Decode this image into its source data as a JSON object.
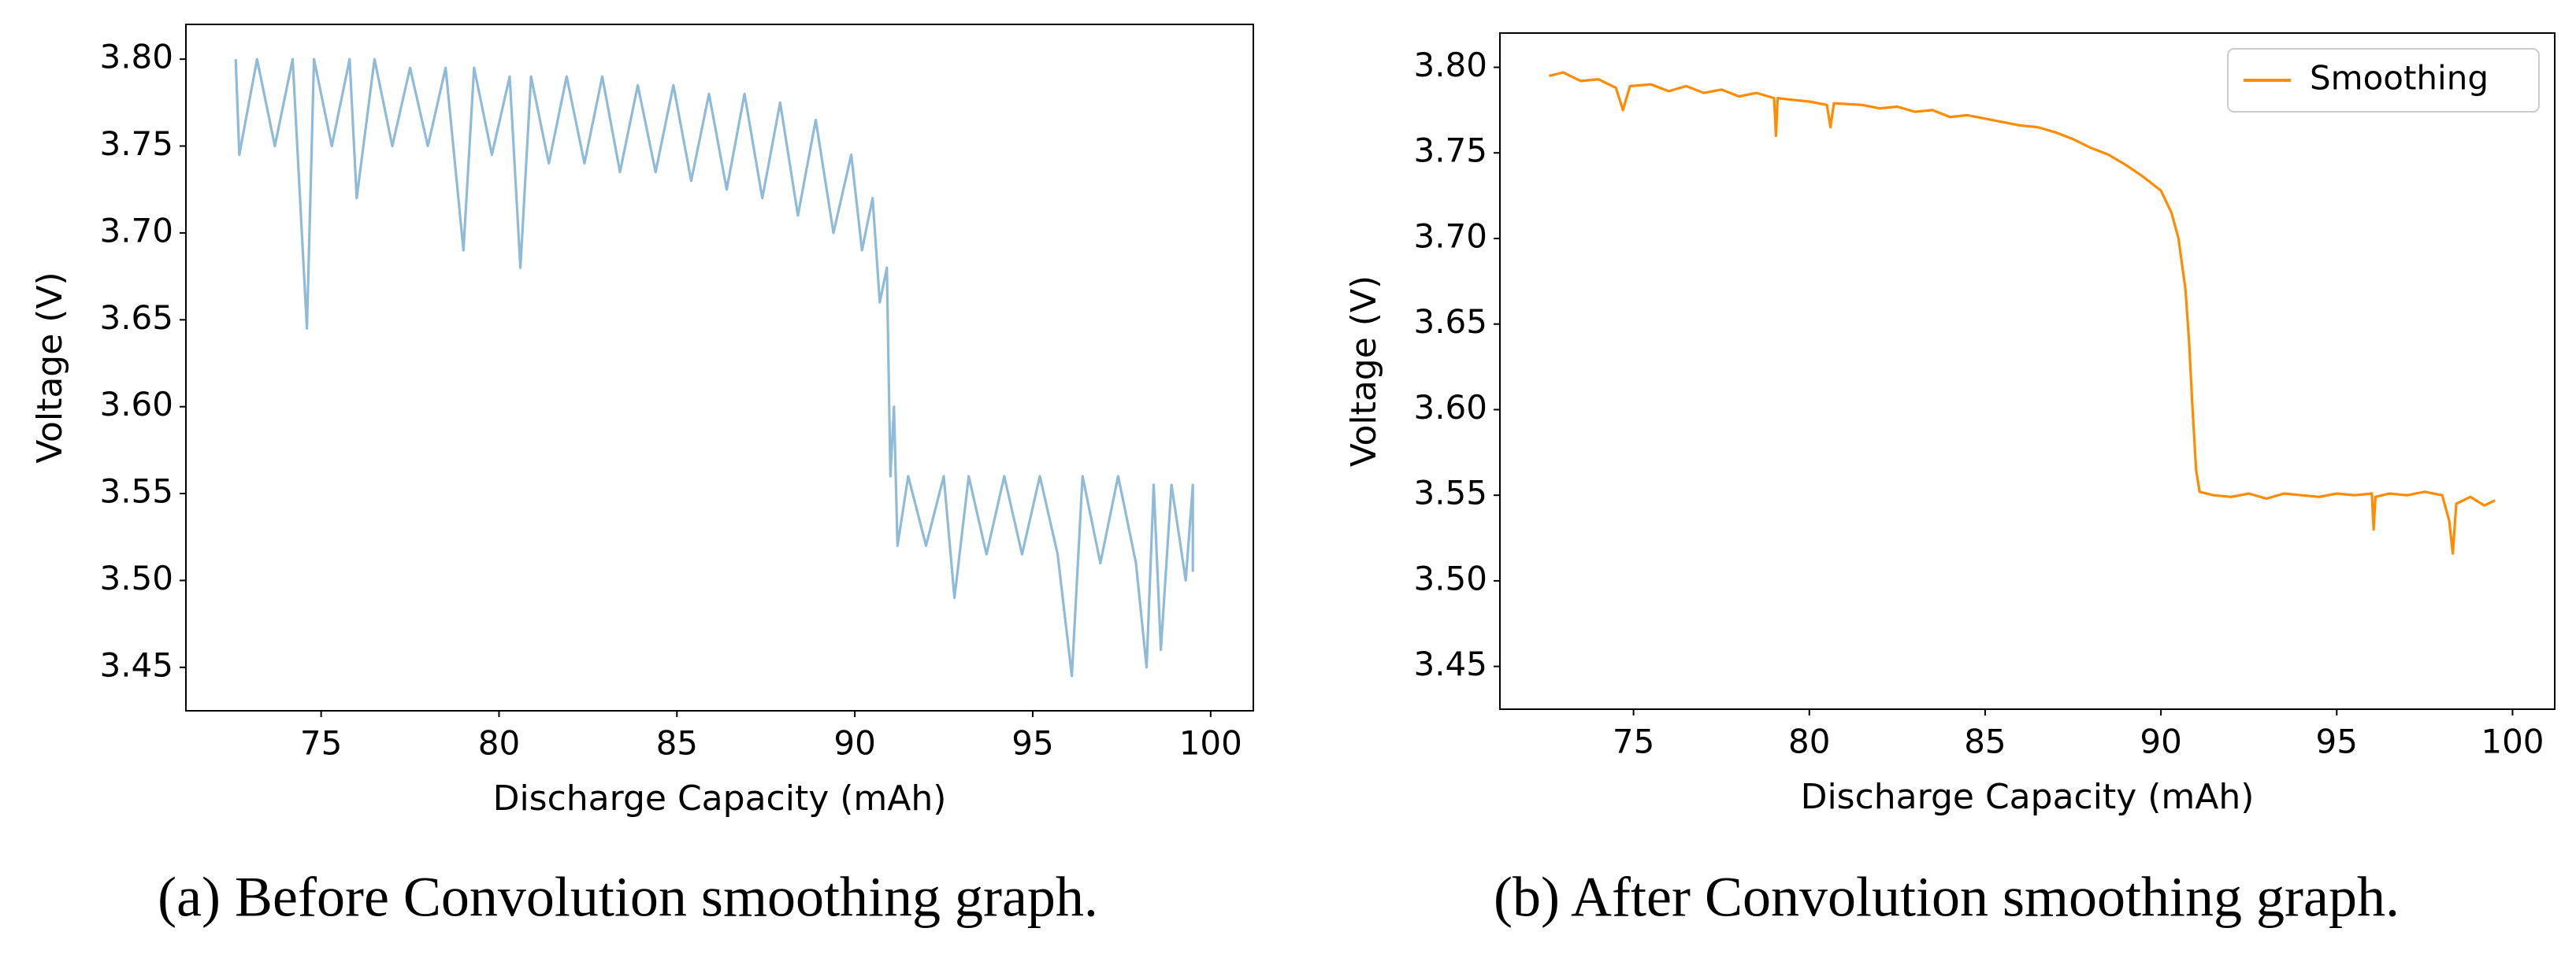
{
  "chart_data": [
    {
      "type": "line",
      "xlabel": "Discharge Capacity (mAh)",
      "ylabel": "Voltage (V)",
      "caption": "(a) Before Convolution smoothing graph.",
      "xlim": [
        71.2,
        101.2
      ],
      "ylim": [
        3.425,
        3.82
      ],
      "xticks": [
        75,
        80,
        85,
        90,
        95,
        100
      ],
      "yticks": [
        3.45,
        {
          "value": 3.5,
          "label": "3.50"
        },
        3.55,
        {
          "value": 3.6,
          "label": "3.60"
        },
        3.65,
        {
          "value": 3.7,
          "label": "3.70"
        },
        3.75,
        {
          "value": 3.8,
          "label": "3.80"
        }
      ],
      "grid": false,
      "x": [
        72.6,
        72.7,
        73.2,
        73.7,
        74.2,
        74.6,
        74.8,
        75.3,
        75.8,
        76.0,
        76.5,
        77.0,
        77.5,
        78.0,
        78.5,
        79.0,
        79.3,
        79.8,
        80.3,
        80.6,
        80.9,
        81.4,
        81.9,
        82.4,
        82.9,
        83.4,
        83.9,
        84.4,
        84.9,
        85.4,
        85.9,
        86.4,
        86.9,
        87.4,
        87.9,
        88.4,
        88.9,
        89.4,
        89.9,
        90.2,
        90.5,
        90.7,
        90.9,
        91.0,
        91.1,
        91.2,
        91.5,
        92.0,
        92.5,
        92.8,
        93.2,
        93.7,
        94.2,
        94.7,
        95.2,
        95.7,
        96.1,
        96.4,
        96.9,
        97.4,
        97.9,
        98.2,
        98.4,
        98.6,
        98.9,
        99.3,
        99.5,
        99.5
      ],
      "series": [
        {
          "color": "#8fbbd9",
          "values": [
            3.8,
            3.745,
            3.8,
            3.75,
            3.8,
            3.645,
            3.8,
            3.75,
            3.8,
            3.72,
            3.8,
            3.75,
            3.795,
            3.75,
            3.795,
            3.69,
            3.795,
            3.745,
            3.79,
            3.68,
            3.79,
            3.74,
            3.79,
            3.74,
            3.79,
            3.735,
            3.785,
            3.735,
            3.785,
            3.73,
            3.78,
            3.725,
            3.78,
            3.72,
            3.775,
            3.71,
            3.765,
            3.7,
            3.745,
            3.69,
            3.72,
            3.66,
            3.68,
            3.56,
            3.6,
            3.52,
            3.56,
            3.52,
            3.56,
            3.49,
            3.56,
            3.515,
            3.56,
            3.515,
            3.56,
            3.515,
            3.445,
            3.56,
            3.51,
            3.56,
            3.51,
            3.45,
            3.555,
            3.46,
            3.555,
            3.5,
            3.555,
            3.505
          ]
        }
      ]
    },
    {
      "type": "line",
      "xlabel": "Discharge Capacity (mAh)",
      "ylabel": "Voltage (V)",
      "caption": "(b) After Convolution smoothing graph.",
      "xlim": [
        71.2,
        101.2
      ],
      "ylim": [
        3.425,
        3.82
      ],
      "xticks": [
        75,
        80,
        85,
        90,
        95,
        100
      ],
      "yticks": [
        3.45,
        {
          "value": 3.5,
          "label": "3.50"
        },
        3.55,
        {
          "value": 3.6,
          "label": "3.60"
        },
        3.65,
        {
          "value": 3.7,
          "label": "3.70"
        },
        3.75,
        {
          "value": 3.8,
          "label": "3.80"
        }
      ],
      "grid": false,
      "legend": "upper right",
      "x": [
        72.6,
        73,
        73.5,
        74,
        74.5,
        74.7,
        74.9,
        75.5,
        76,
        76.5,
        77,
        77.5,
        78,
        78.5,
        79,
        79.05,
        79.1,
        79.5,
        80,
        80.5,
        80.6,
        80.7,
        81.5,
        82,
        82.5,
        83,
        83.5,
        84,
        84.5,
        85,
        85.5,
        86,
        86.5,
        87,
        87.5,
        88,
        88.5,
        89,
        89.5,
        90,
        90.3,
        90.5,
        90.7,
        90.8,
        90.9,
        91.0,
        91.1,
        91.5,
        92,
        92.5,
        93,
        93.5,
        94,
        94.5,
        95,
        95.5,
        96,
        96.05,
        96.1,
        96.5,
        97,
        97.5,
        98,
        98.2,
        98.3,
        98.4,
        98.8,
        99.2,
        99.5
      ],
      "series": [
        {
          "name": "Smoothing",
          "color": "#ff8c00",
          "values": [
            3.795,
            3.797,
            3.792,
            3.793,
            3.788,
            3.775,
            3.789,
            3.79,
            3.786,
            3.789,
            3.785,
            3.787,
            3.783,
            3.785,
            3.782,
            3.76,
            3.782,
            3.781,
            3.78,
            3.778,
            3.765,
            3.779,
            3.778,
            3.776,
            3.777,
            3.774,
            3.775,
            3.771,
            3.772,
            3.77,
            3.768,
            3.766,
            3.765,
            3.762,
            3.758,
            3.753,
            3.749,
            3.743,
            3.736,
            3.728,
            3.715,
            3.7,
            3.67,
            3.64,
            3.6,
            3.565,
            3.552,
            3.55,
            3.549,
            3.551,
            3.548,
            3.551,
            3.55,
            3.549,
            3.551,
            3.55,
            3.551,
            3.53,
            3.549,
            3.551,
            3.55,
            3.552,
            3.55,
            3.535,
            3.516,
            3.545,
            3.549,
            3.544,
            3.547
          ]
        }
      ]
    }
  ]
}
